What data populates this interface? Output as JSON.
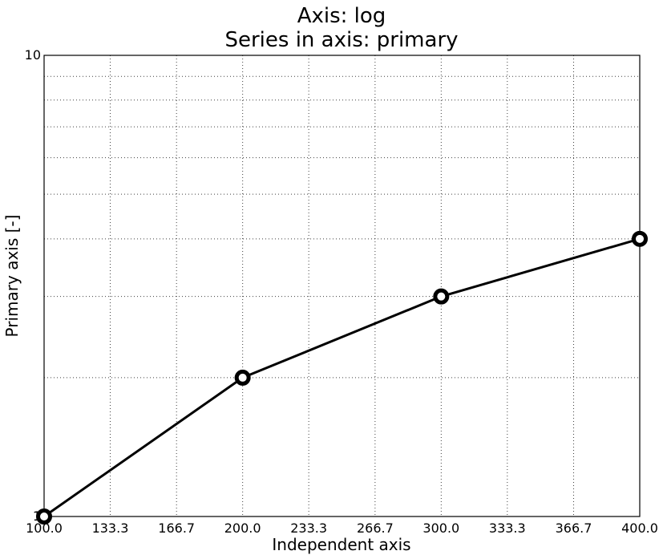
{
  "chart_data": {
    "type": "line",
    "title": "Axis: log",
    "subtitle": "Series in axis: primary",
    "xlabel": "Independent axis",
    "ylabel": "Primary axis [-]",
    "x_scale": "linear",
    "y_scale": "log",
    "xlim": [
      100,
      400
    ],
    "ylim": [
      1,
      10
    ],
    "x_ticks": [
      "100.0",
      "133.3",
      "166.7",
      "200.0",
      "233.3",
      "266.7",
      "300.0",
      "333.3",
      "366.7",
      "400.0"
    ],
    "x_tick_values": [
      100,
      133.3,
      166.7,
      200,
      233.3,
      266.7,
      300,
      333.3,
      366.7,
      400
    ],
    "y_ticks": [
      "1",
      "10"
    ],
    "y_tick_values": [
      1,
      10
    ],
    "y_minor_grid_values": [
      2,
      3,
      4,
      5,
      6,
      7,
      8,
      9
    ],
    "grid": true,
    "legend": false,
    "series": [
      {
        "x": [
          100,
          200,
          300,
          400
        ],
        "values": [
          1,
          2,
          3,
          4
        ],
        "color": "#000000",
        "marker": "circle"
      }
    ]
  }
}
